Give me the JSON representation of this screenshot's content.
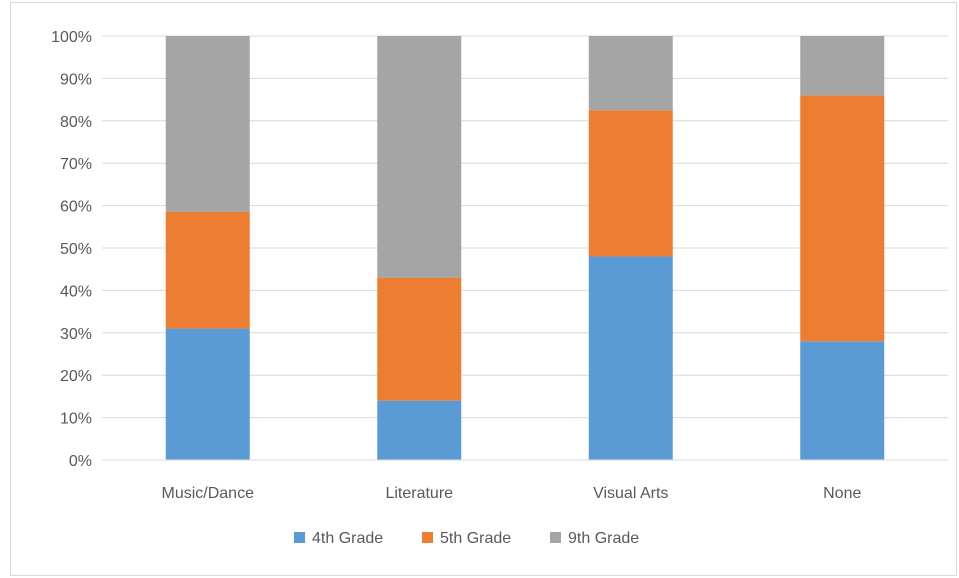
{
  "chart_data": {
    "type": "bar",
    "stacked": "percent",
    "categories": [
      "Music/Dance",
      "Literature",
      "Visual Arts",
      "None"
    ],
    "series": [
      {
        "name": "4th Grade",
        "color": "#5b9bd5",
        "values": [
          31,
          14,
          48,
          28
        ]
      },
      {
        "name": "5th Grade",
        "color": "#ed7d31",
        "values": [
          27.5,
          29,
          34.5,
          58
        ]
      },
      {
        "name": "9th Grade",
        "color": "#a5a5a5",
        "values": [
          41.5,
          57,
          17.5,
          14
        ]
      }
    ],
    "y_ticks": [
      "0%",
      "10%",
      "20%",
      "30%",
      "40%",
      "50%",
      "60%",
      "70%",
      "80%",
      "90%",
      "100%"
    ],
    "ylim": [
      0,
      100
    ],
    "grid": true,
    "legend_position": "bottom",
    "title": "",
    "xlabel": "",
    "ylabel": ""
  }
}
